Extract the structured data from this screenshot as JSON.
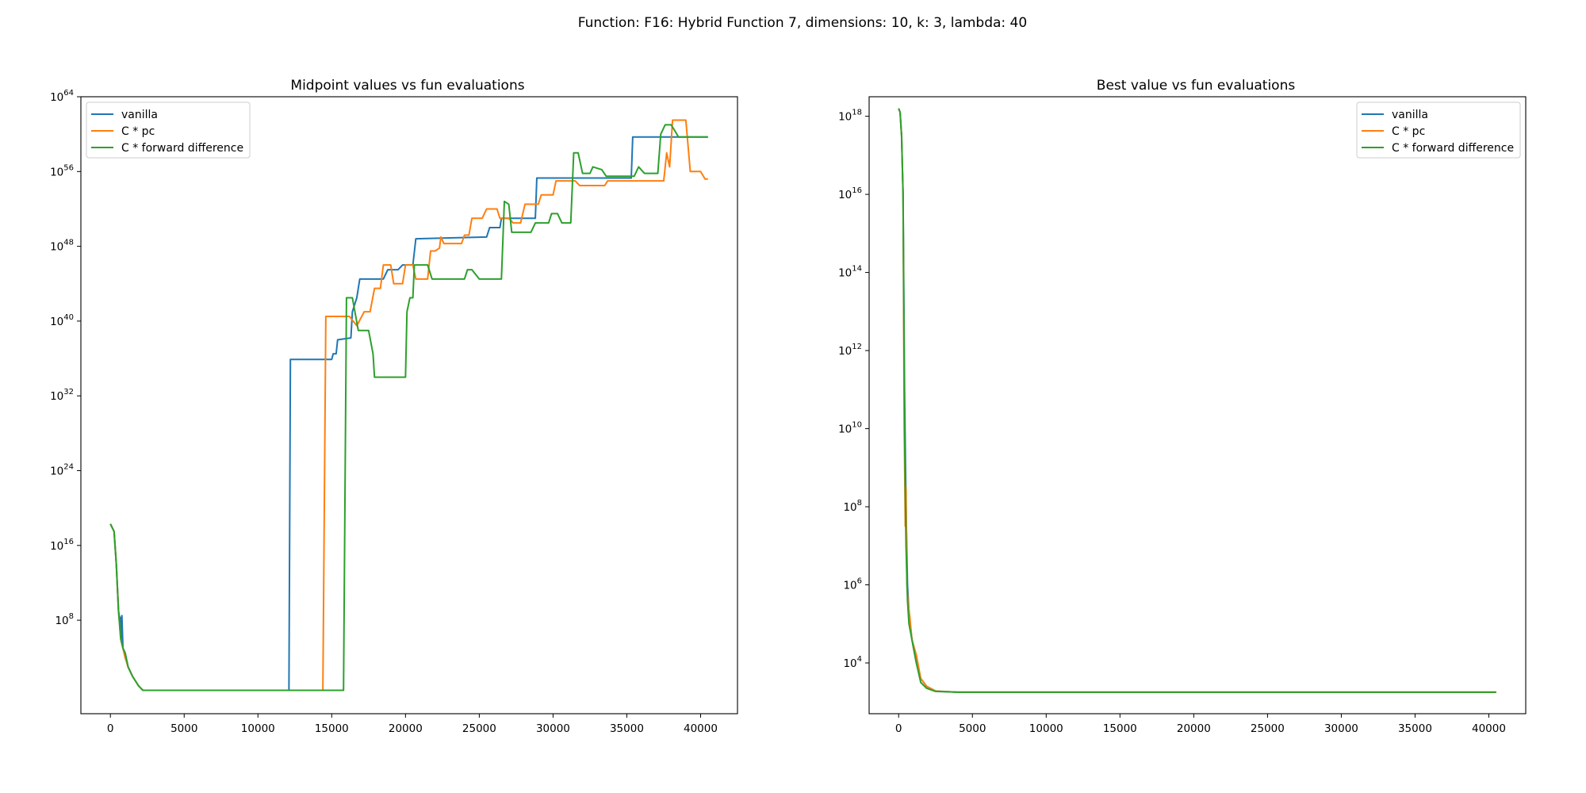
{
  "figure": {
    "suptitle": "Function: F16: Hybrid Function 7, dimensions: 10, k: 3, lambda: 40"
  },
  "chart_data": [
    {
      "type": "line",
      "title": "Midpoint values vs fun evaluations",
      "xlabel": "",
      "ylabel": "",
      "y_scale": "log",
      "xlim": [
        -2000,
        42500
      ],
      "ylim_exp": [
        -2,
        64
      ],
      "x_ticks": [
        0,
        5000,
        10000,
        15000,
        20000,
        25000,
        30000,
        35000,
        40000
      ],
      "x_tick_labels": [
        "0",
        "5000",
        "10000",
        "15000",
        "20000",
        "25000",
        "30000",
        "35000",
        "40000"
      ],
      "y_ticks_exp": [
        8,
        16,
        24,
        32,
        40,
        48,
        56,
        64
      ],
      "y_tick_labels": [
        {
          "base": "10",
          "exp": "8"
        },
        {
          "base": "10",
          "exp": "16"
        },
        {
          "base": "10",
          "exp": "24"
        },
        {
          "base": "10",
          "exp": "32"
        },
        {
          "base": "10",
          "exp": "40"
        },
        {
          "base": "10",
          "exp": "48"
        },
        {
          "base": "10",
          "exp": "56"
        },
        {
          "base": "10",
          "exp": "64"
        }
      ],
      "grid": false,
      "legend_position": "upper left",
      "series": [
        {
          "name": "vanilla",
          "color": "#1f77b4",
          "points_log10": [
            [
              0,
              18.3
            ],
            [
              250,
              17.5
            ],
            [
              400,
              14
            ],
            [
              550,
              9
            ],
            [
              650,
              8
            ],
            [
              700,
              8.3
            ],
            [
              750,
              6
            ],
            [
              780,
              8.5
            ],
            [
              850,
              5
            ],
            [
              1000,
              4.5
            ],
            [
              1200,
              3
            ],
            [
              1500,
              2
            ],
            [
              1900,
              1
            ],
            [
              2200,
              0.5
            ],
            [
              5000,
              0.5
            ],
            [
              10000,
              0.5
            ],
            [
              12100,
              0.5
            ],
            [
              12200,
              35.9
            ],
            [
              15000,
              35.9
            ],
            [
              15100,
              36.5
            ],
            [
              15300,
              36.5
            ],
            [
              15400,
              38
            ],
            [
              16300,
              38.2
            ],
            [
              16400,
              41
            ],
            [
              16700,
              42.5
            ],
            [
              16900,
              44.5
            ],
            [
              18500,
              44.5
            ],
            [
              18800,
              45.5
            ],
            [
              19500,
              45.5
            ],
            [
              19800,
              46
            ],
            [
              20500,
              46
            ],
            [
              20700,
              48.8
            ],
            [
              23000,
              48.9
            ],
            [
              25500,
              49
            ],
            [
              25700,
              50
            ],
            [
              26400,
              50
            ],
            [
              26500,
              51
            ],
            [
              28800,
              51
            ],
            [
              28900,
              55.3
            ],
            [
              35300,
              55.3
            ],
            [
              35400,
              59.7
            ],
            [
              40500,
              59.7
            ]
          ]
        },
        {
          "name": "C * pc",
          "color": "#ff7f0e",
          "points_log10": [
            [
              0,
              18.3
            ],
            [
              250,
              17.5
            ],
            [
              400,
              14
            ],
            [
              550,
              9
            ],
            [
              700,
              6
            ],
            [
              850,
              5
            ],
            [
              1000,
              4
            ],
            [
              1200,
              3
            ],
            [
              1500,
              2
            ],
            [
              1900,
              1
            ],
            [
              2200,
              0.5
            ],
            [
              10000,
              0.5
            ],
            [
              14400,
              0.5
            ],
            [
              14600,
              40.5
            ],
            [
              16200,
              40.5
            ],
            [
              16700,
              39.5
            ],
            [
              17200,
              41
            ],
            [
              17600,
              41
            ],
            [
              17900,
              43.5
            ],
            [
              18300,
              43.5
            ],
            [
              18500,
              46
            ],
            [
              19000,
              46
            ],
            [
              19200,
              44
            ],
            [
              19800,
              44
            ],
            [
              20000,
              46
            ],
            [
              20500,
              46
            ],
            [
              20700,
              44.5
            ],
            [
              21500,
              44.5
            ],
            [
              21700,
              47.5
            ],
            [
              22000,
              47.5
            ],
            [
              22300,
              47.8
            ],
            [
              22400,
              49
            ],
            [
              22600,
              48.3
            ],
            [
              23800,
              48.3
            ],
            [
              24000,
              49.2
            ],
            [
              24300,
              49.2
            ],
            [
              24500,
              51
            ],
            [
              25200,
              51
            ],
            [
              25500,
              52
            ],
            [
              26200,
              52
            ],
            [
              26400,
              51
            ],
            [
              27000,
              51
            ],
            [
              27300,
              50.5
            ],
            [
              27800,
              50.5
            ],
            [
              28100,
              52.5
            ],
            [
              29000,
              52.5
            ],
            [
              29200,
              53.5
            ],
            [
              30000,
              53.5
            ],
            [
              30200,
              55
            ],
            [
              31500,
              55
            ],
            [
              31800,
              54.5
            ],
            [
              33500,
              54.5
            ],
            [
              33700,
              55
            ],
            [
              37500,
              55
            ],
            [
              37700,
              58
            ],
            [
              37900,
              56.5
            ],
            [
              38100,
              61.5
            ],
            [
              39000,
              61.5
            ],
            [
              39300,
              56
            ],
            [
              40000,
              56
            ],
            [
              40300,
              55.2
            ],
            [
              40500,
              55.2
            ]
          ]
        },
        {
          "name": "C * forward difference",
          "color": "#2ca02c",
          "points_log10": [
            [
              0,
              18.3
            ],
            [
              250,
              17.5
            ],
            [
              400,
              14
            ],
            [
              550,
              9
            ],
            [
              700,
              6
            ],
            [
              850,
              5
            ],
            [
              1000,
              4.5
            ],
            [
              1200,
              3
            ],
            [
              1500,
              2
            ],
            [
              1900,
              1
            ],
            [
              2200,
              0.5
            ],
            [
              10000,
              0.5
            ],
            [
              15800,
              0.5
            ],
            [
              16000,
              42.5
            ],
            [
              16400,
              42.5
            ],
            [
              16800,
              39
            ],
            [
              17500,
              39
            ],
            [
              17800,
              36.5
            ],
            [
              17900,
              34
            ],
            [
              20000,
              34
            ],
            [
              20100,
              41
            ],
            [
              20300,
              42.5
            ],
            [
              20500,
              42.5
            ],
            [
              20600,
              46
            ],
            [
              21500,
              46
            ],
            [
              21800,
              44.5
            ],
            [
              24000,
              44.5
            ],
            [
              24200,
              45.5
            ],
            [
              24500,
              45.5
            ],
            [
              25000,
              44.5
            ],
            [
              26200,
              44.5
            ],
            [
              26500,
              44.5
            ],
            [
              26700,
              52.8
            ],
            [
              27000,
              52.5
            ],
            [
              27200,
              49.5
            ],
            [
              28500,
              49.5
            ],
            [
              28800,
              50.5
            ],
            [
              29700,
              50.5
            ],
            [
              29900,
              51.5
            ],
            [
              30300,
              51.5
            ],
            [
              30600,
              50.5
            ],
            [
              31200,
              50.5
            ],
            [
              31400,
              58
            ],
            [
              31700,
              58
            ],
            [
              32000,
              55.8
            ],
            [
              32500,
              55.8
            ],
            [
              32700,
              56.5
            ],
            [
              33300,
              56.2
            ],
            [
              33600,
              55.5
            ],
            [
              35500,
              55.5
            ],
            [
              35800,
              56.5
            ],
            [
              36200,
              55.8
            ],
            [
              36500,
              55.8
            ],
            [
              37100,
              55.8
            ],
            [
              37300,
              60
            ],
            [
              37600,
              61
            ],
            [
              38000,
              61
            ],
            [
              38200,
              60.5
            ],
            [
              38500,
              59.7
            ],
            [
              40500,
              59.7
            ]
          ]
        }
      ]
    },
    {
      "type": "line",
      "title": "Best value vs fun evaluations",
      "xlabel": "",
      "ylabel": "",
      "y_scale": "log",
      "xlim": [
        -2000,
        42500
      ],
      "ylim_exp": [
        2.7,
        18.5
      ],
      "x_ticks": [
        0,
        5000,
        10000,
        15000,
        20000,
        25000,
        30000,
        35000,
        40000
      ],
      "x_tick_labels": [
        "0",
        "5000",
        "10000",
        "15000",
        "20000",
        "25000",
        "30000",
        "35000",
        "40000"
      ],
      "y_ticks_exp": [
        4,
        6,
        8,
        10,
        12,
        14,
        16,
        18
      ],
      "y_tick_labels": [
        {
          "base": "10",
          "exp": "4"
        },
        {
          "base": "10",
          "exp": "6"
        },
        {
          "base": "10",
          "exp": "8"
        },
        {
          "base": "10",
          "exp": "10"
        },
        {
          "base": "10",
          "exp": "12"
        },
        {
          "base": "10",
          "exp": "14"
        },
        {
          "base": "10",
          "exp": "16"
        },
        {
          "base": "10",
          "exp": "18"
        }
      ],
      "grid": false,
      "legend_position": "upper right",
      "series": [
        {
          "name": "vanilla",
          "color": "#1f77b4",
          "points_log10": [
            [
              0,
              18.2
            ],
            [
              100,
              18.1
            ],
            [
              200,
              17.5
            ],
            [
              300,
              16
            ],
            [
              400,
              11
            ],
            [
              500,
              8
            ],
            [
              600,
              6
            ],
            [
              700,
              5.3
            ],
            [
              900,
              4.6
            ],
            [
              1200,
              4
            ],
            [
              1500,
              3.6
            ],
            [
              1900,
              3.4
            ],
            [
              2500,
              3.28
            ],
            [
              4000,
              3.25
            ],
            [
              40500,
              3.25
            ]
          ]
        },
        {
          "name": "C * pc",
          "color": "#ff7f0e",
          "points_log10": [
            [
              0,
              18.2
            ],
            [
              100,
              18.1
            ],
            [
              200,
              17.5
            ],
            [
              300,
              16
            ],
            [
              380,
              10
            ],
            [
              450,
              7.5
            ],
            [
              500,
              8.5
            ],
            [
              560,
              6
            ],
            [
              650,
              5.5
            ],
            [
              750,
              5.2
            ],
            [
              900,
              4.6
            ],
            [
              1200,
              4.2
            ],
            [
              1500,
              3.6
            ],
            [
              1900,
              3.4
            ],
            [
              2500,
              3.28
            ],
            [
              4000,
              3.25
            ],
            [
              40500,
              3.25
            ]
          ]
        },
        {
          "name": "C * forward difference",
          "color": "#2ca02c",
          "points_log10": [
            [
              0,
              18.2
            ],
            [
              100,
              18.1
            ],
            [
              200,
              17.5
            ],
            [
              300,
              16
            ],
            [
              400,
              10
            ],
            [
              500,
              7
            ],
            [
              600,
              5.6
            ],
            [
              700,
              5
            ],
            [
              900,
              4.6
            ],
            [
              1200,
              4
            ],
            [
              1500,
              3.5
            ],
            [
              1900,
              3.35
            ],
            [
              2500,
              3.27
            ],
            [
              4000,
              3.25
            ],
            [
              40500,
              3.25
            ]
          ]
        }
      ]
    }
  ]
}
